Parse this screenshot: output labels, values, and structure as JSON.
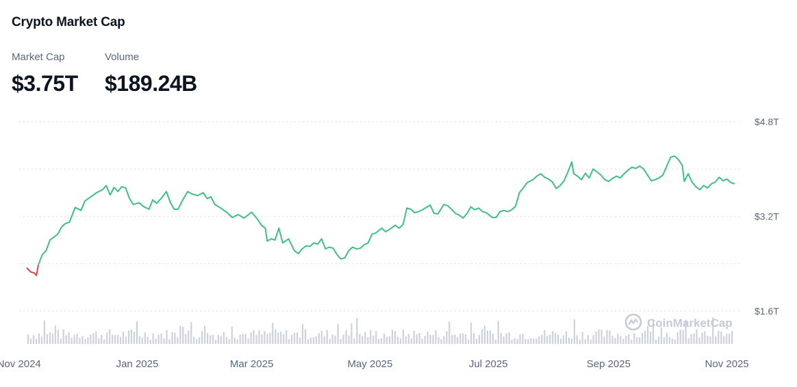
{
  "header": {
    "title": "Crypto Market Cap",
    "market_cap_label": "Market Cap",
    "market_cap_value": "$3.75T",
    "volume_label": "Volume",
    "volume_value": "$189.24B"
  },
  "watermark": {
    "text": "CoinMarketCap",
    "icon": "coinmarketcap-logo-icon"
  },
  "colors": {
    "up": "#3ebf83",
    "down": "#d9434c",
    "grid": "#d9dde3",
    "tick": "#58667e",
    "volume": "#ccd2dc"
  },
  "chart_data": {
    "type": "line",
    "title": "",
    "xlabel": "",
    "ylabel": "",
    "x_range": [
      "2024-11-05",
      "2025-11-05"
    ],
    "ylim": [
      0.8,
      4.8
    ],
    "yticks": [
      1.6,
      3.2,
      4.8
    ],
    "ytick_labels": [
      "$1.6T",
      "$3.2T",
      "$4.8T"
    ],
    "xtick_labels": [
      {
        "date": "2024-11-01",
        "label": "Nov 2024"
      },
      {
        "date": "2025-01-01",
        "label": "Jan 2025"
      },
      {
        "date": "2025-03-01",
        "label": "Mar 2025"
      },
      {
        "date": "2025-05-01",
        "label": "May 2025"
      },
      {
        "date": "2025-07-01",
        "label": "Jul 2025"
      },
      {
        "date": "2025-09-01",
        "label": "Sep 2025"
      },
      {
        "date": "2025-11-01",
        "label": "Nov 2025"
      }
    ],
    "grid": true,
    "series": [
      {
        "values": [
          [
            "2024-11-05",
            2.33
          ],
          [
            "2024-11-07",
            2.26
          ],
          [
            "2024-11-09",
            2.24
          ],
          [
            "2024-11-10",
            2.2
          ],
          [
            "2024-11-11",
            2.38
          ],
          [
            "2024-11-13",
            2.55
          ],
          [
            "2024-11-15",
            2.62
          ],
          [
            "2024-11-17",
            2.8
          ],
          [
            "2024-11-19",
            2.85
          ],
          [
            "2024-11-21",
            2.9
          ],
          [
            "2024-11-23",
            3.02
          ],
          [
            "2024-11-25",
            3.08
          ],
          [
            "2024-11-27",
            3.1
          ],
          [
            "2024-11-30",
            3.35
          ],
          [
            "2024-12-03",
            3.3
          ],
          [
            "2024-12-05",
            3.46
          ],
          [
            "2024-12-08",
            3.53
          ],
          [
            "2024-12-11",
            3.6
          ],
          [
            "2024-12-14",
            3.65
          ],
          [
            "2024-12-16",
            3.72
          ],
          [
            "2024-12-18",
            3.56
          ],
          [
            "2024-12-20",
            3.69
          ],
          [
            "2024-12-22",
            3.62
          ],
          [
            "2024-12-24",
            3.7
          ],
          [
            "2024-12-26",
            3.68
          ],
          [
            "2024-12-28",
            3.5
          ],
          [
            "2024-12-30",
            3.4
          ],
          [
            "2025-01-02",
            3.43
          ],
          [
            "2025-01-04",
            3.37
          ],
          [
            "2025-01-07",
            3.32
          ],
          [
            "2025-01-09",
            3.48
          ],
          [
            "2025-01-11",
            3.42
          ],
          [
            "2025-01-14",
            3.53
          ],
          [
            "2025-01-16",
            3.62
          ],
          [
            "2025-01-18",
            3.44
          ],
          [
            "2025-01-20",
            3.32
          ],
          [
            "2025-01-22",
            3.32
          ],
          [
            "2025-01-24",
            3.45
          ],
          [
            "2025-01-27",
            3.62
          ],
          [
            "2025-01-29",
            3.58
          ],
          [
            "2025-02-01",
            3.55
          ],
          [
            "2025-02-04",
            3.6
          ],
          [
            "2025-02-06",
            3.5
          ],
          [
            "2025-02-08",
            3.53
          ],
          [
            "2025-02-10",
            3.4
          ],
          [
            "2025-02-13",
            3.34
          ],
          [
            "2025-02-16",
            3.27
          ],
          [
            "2025-02-19",
            3.18
          ],
          [
            "2025-02-22",
            3.23
          ],
          [
            "2025-02-25",
            3.17
          ],
          [
            "2025-02-27",
            3.22
          ],
          [
            "2025-03-01",
            3.27
          ],
          [
            "2025-03-04",
            3.15
          ],
          [
            "2025-03-06",
            3.05
          ],
          [
            "2025-03-08",
            3.0
          ],
          [
            "2025-03-09",
            2.78
          ],
          [
            "2025-03-11",
            2.82
          ],
          [
            "2025-03-13",
            2.8
          ],
          [
            "2025-03-15",
            3.0
          ],
          [
            "2025-03-17",
            2.75
          ],
          [
            "2025-03-20",
            2.82
          ],
          [
            "2025-03-23",
            2.62
          ],
          [
            "2025-03-25",
            2.57
          ],
          [
            "2025-03-27",
            2.65
          ],
          [
            "2025-03-29",
            2.7
          ],
          [
            "2025-03-31",
            2.69
          ],
          [
            "2025-04-02",
            2.75
          ],
          [
            "2025-04-04",
            2.73
          ],
          [
            "2025-04-06",
            2.82
          ],
          [
            "2025-04-08",
            2.65
          ],
          [
            "2025-04-10",
            2.68
          ],
          [
            "2025-04-12",
            2.66
          ],
          [
            "2025-04-14",
            2.55
          ],
          [
            "2025-04-16",
            2.48
          ],
          [
            "2025-04-18",
            2.5
          ],
          [
            "2025-04-20",
            2.62
          ],
          [
            "2025-04-22",
            2.68
          ],
          [
            "2025-04-24",
            2.65
          ],
          [
            "2025-04-26",
            2.66
          ],
          [
            "2025-04-28",
            2.72
          ],
          [
            "2025-04-30",
            2.75
          ],
          [
            "2025-05-02",
            2.9
          ],
          [
            "2025-05-04",
            2.92
          ],
          [
            "2025-05-07",
            3.0
          ],
          [
            "2025-05-09",
            2.94
          ],
          [
            "2025-05-12",
            3.0
          ],
          [
            "2025-05-14",
            3.05
          ],
          [
            "2025-05-16",
            3.0
          ],
          [
            "2025-05-18",
            3.06
          ],
          [
            "2025-05-20",
            3.34
          ],
          [
            "2025-05-22",
            3.32
          ],
          [
            "2025-05-24",
            3.26
          ],
          [
            "2025-05-26",
            3.28
          ],
          [
            "2025-05-28",
            3.31
          ],
          [
            "2025-05-30",
            3.35
          ],
          [
            "2025-06-01",
            3.39
          ],
          [
            "2025-06-03",
            3.25
          ],
          [
            "2025-06-05",
            3.24
          ],
          [
            "2025-06-08",
            3.4
          ],
          [
            "2025-06-10",
            3.38
          ],
          [
            "2025-06-12",
            3.32
          ],
          [
            "2025-06-14",
            3.25
          ],
          [
            "2025-06-16",
            3.22
          ],
          [
            "2025-06-18",
            3.17
          ],
          [
            "2025-06-20",
            3.25
          ],
          [
            "2025-06-22",
            3.36
          ],
          [
            "2025-06-24",
            3.31
          ],
          [
            "2025-06-26",
            3.34
          ],
          [
            "2025-06-28",
            3.28
          ],
          [
            "2025-06-30",
            3.26
          ],
          [
            "2025-07-03",
            3.18
          ],
          [
            "2025-07-05",
            3.18
          ],
          [
            "2025-07-07",
            3.28
          ],
          [
            "2025-07-09",
            3.3
          ],
          [
            "2025-07-11",
            3.28
          ],
          [
            "2025-07-13",
            3.31
          ],
          [
            "2025-07-15",
            3.37
          ],
          [
            "2025-07-17",
            3.6
          ],
          [
            "2025-07-19",
            3.68
          ],
          [
            "2025-07-21",
            3.77
          ],
          [
            "2025-07-24",
            3.82
          ],
          [
            "2025-07-26",
            3.88
          ],
          [
            "2025-07-28",
            3.92
          ],
          [
            "2025-07-30",
            3.86
          ],
          [
            "2025-08-01",
            3.83
          ],
          [
            "2025-08-03",
            3.78
          ],
          [
            "2025-08-05",
            3.67
          ],
          [
            "2025-08-07",
            3.72
          ],
          [
            "2025-08-09",
            3.8
          ],
          [
            "2025-08-11",
            3.95
          ],
          [
            "2025-08-13",
            4.12
          ],
          [
            "2025-08-14",
            3.92
          ],
          [
            "2025-08-16",
            3.88
          ],
          [
            "2025-08-18",
            3.82
          ],
          [
            "2025-08-20",
            3.93
          ],
          [
            "2025-08-22",
            3.85
          ],
          [
            "2025-08-24",
            4.0
          ],
          [
            "2025-08-26",
            3.95
          ],
          [
            "2025-08-28",
            3.9
          ],
          [
            "2025-08-30",
            3.82
          ],
          [
            "2025-09-01",
            3.79
          ],
          [
            "2025-09-03",
            3.84
          ],
          [
            "2025-09-05",
            3.88
          ],
          [
            "2025-09-07",
            3.85
          ],
          [
            "2025-09-09",
            3.92
          ],
          [
            "2025-09-11",
            3.98
          ],
          [
            "2025-09-13",
            4.03
          ],
          [
            "2025-09-15",
            4.01
          ],
          [
            "2025-09-17",
            4.05
          ],
          [
            "2025-09-19",
            4.0
          ],
          [
            "2025-09-21",
            3.9
          ],
          [
            "2025-09-23",
            3.8
          ],
          [
            "2025-09-25",
            3.82
          ],
          [
            "2025-09-27",
            3.85
          ],
          [
            "2025-09-29",
            3.9
          ],
          [
            "2025-10-01",
            4.05
          ],
          [
            "2025-10-03",
            4.2
          ],
          [
            "2025-10-05",
            4.22
          ],
          [
            "2025-10-07",
            4.16
          ],
          [
            "2025-10-09",
            4.06
          ],
          [
            "2025-10-10",
            3.79
          ],
          [
            "2025-10-12",
            3.92
          ],
          [
            "2025-10-14",
            3.78
          ],
          [
            "2025-10-16",
            3.7
          ],
          [
            "2025-10-18",
            3.65
          ],
          [
            "2025-10-20",
            3.72
          ],
          [
            "2025-10-22",
            3.68
          ],
          [
            "2025-10-24",
            3.75
          ],
          [
            "2025-10-26",
            3.78
          ],
          [
            "2025-10-28",
            3.86
          ],
          [
            "2025-10-30",
            3.8
          ],
          [
            "2025-11-01",
            3.83
          ],
          [
            "2025-11-03",
            3.77
          ],
          [
            "2025-11-05",
            3.75
          ]
        ]
      }
    ]
  }
}
